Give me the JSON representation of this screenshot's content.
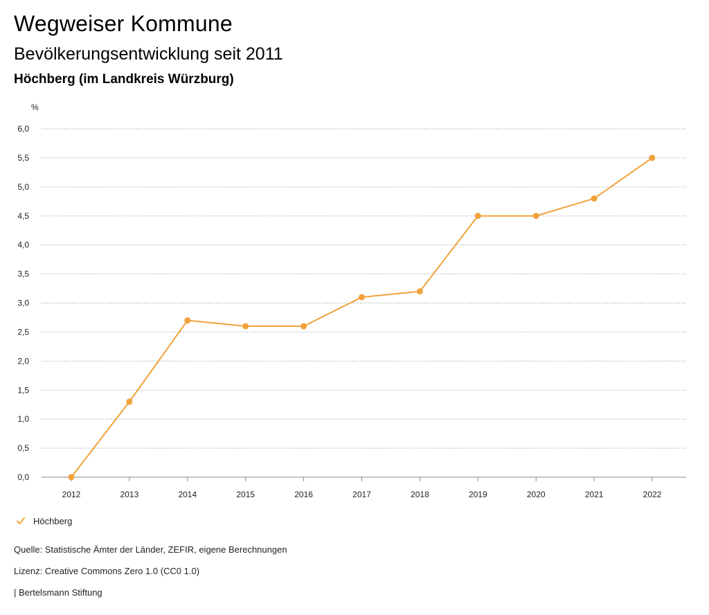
{
  "header": {
    "title": "Wegweiser Kommune",
    "subtitle": "Bevölkerungsentwicklung seit 2011",
    "region": "Höchberg (im Landkreis Würzburg)"
  },
  "chart_data": {
    "type": "line",
    "ylabel": "%",
    "ylim": [
      0,
      6
    ],
    "yticks": [
      "0,0",
      "0,5",
      "1,0",
      "1,5",
      "2,0",
      "2,5",
      "3,0",
      "3,5",
      "4,0",
      "4,5",
      "5,0",
      "5,5",
      "6,0"
    ],
    "x": [
      "2012",
      "2013",
      "2014",
      "2015",
      "2016",
      "2017",
      "2018",
      "2019",
      "2020",
      "2021",
      "2022"
    ],
    "series": [
      {
        "name": "Höchberg",
        "color": "#F0A23B",
        "values": [
          0.0,
          1.3,
          2.7,
          2.6,
          2.6,
          3.1,
          3.2,
          4.5,
          4.5,
          4.8,
          5.5
        ]
      }
    ],
    "grid": true,
    "legend": "bottom-left"
  },
  "legend": {
    "label": "Höchberg",
    "icon": "check-icon"
  },
  "footer": {
    "source": "Quelle: Statistische Ämter der Länder, ZEFIR, eigene Berechnungen",
    "license": "Lizenz: Creative Commons Zero 1.0 (CC0 1.0)",
    "publisher": "| Bertelsmann Stiftung"
  }
}
